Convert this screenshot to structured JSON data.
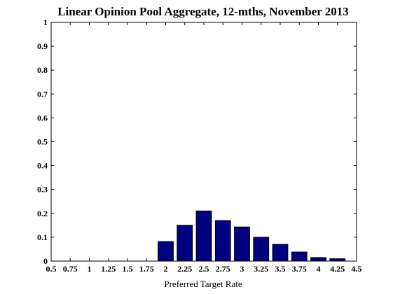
{
  "chart_data": {
    "type": "bar",
    "title": "Linear Opinion Pool Aggregate, 12-mths, November 2013",
    "xlabel": "Preferred Target Rate",
    "ylabel": "",
    "xlim": [
      0.5,
      4.5
    ],
    "ylim": [
      0,
      1
    ],
    "x_ticks": [
      "0.5",
      "0.75",
      "1",
      "1.25",
      "1.5",
      "1.75",
      "2",
      "2.25",
      "2.5",
      "2.75",
      "3",
      "3.25",
      "3.5",
      "3.75",
      "4",
      "4.25",
      "4.5"
    ],
    "y_ticks": [
      "0",
      "0.1",
      "0.2",
      "0.3",
      "0.4",
      "0.5",
      "0.6",
      "0.7",
      "0.8",
      "0.9",
      "1"
    ],
    "categories": [
      2,
      2.25,
      2.5,
      2.75,
      3,
      3.25,
      3.5,
      3.75,
      4,
      4.25
    ],
    "values": [
      0.082,
      0.15,
      0.21,
      0.17,
      0.143,
      0.1,
      0.07,
      0.038,
      0.015,
      0.01
    ],
    "bar_color": "#000080",
    "grid": false
  }
}
